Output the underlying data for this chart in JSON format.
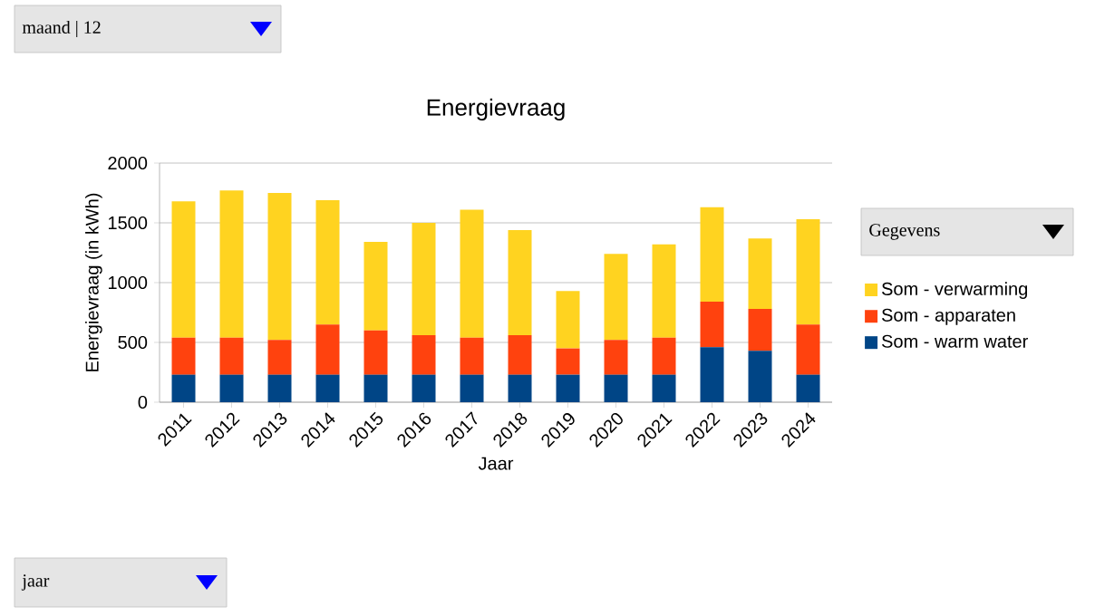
{
  "chart_data": {
    "type": "bar",
    "stacked": true,
    "title": "Energievraag",
    "xlabel": "Jaar",
    "ylabel": "Energievraag (in kWh)",
    "categories": [
      "2011",
      "2012",
      "2013",
      "2014",
      "2015",
      "2016",
      "2017",
      "2018",
      "2019",
      "2020",
      "2021",
      "2022",
      "2023",
      "2024"
    ],
    "series": [
      {
        "name": "Som - warm water",
        "color": "#004586",
        "values": [
          230,
          230,
          230,
          230,
          230,
          230,
          230,
          230,
          230,
          230,
          230,
          460,
          430,
          230
        ]
      },
      {
        "name": "Som - apparaten",
        "color": "#ff420e",
        "values": [
          310,
          310,
          290,
          420,
          370,
          330,
          310,
          330,
          220,
          290,
          310,
          380,
          350,
          420
        ]
      },
      {
        "name": "Som - verwarming",
        "color": "#ffd320",
        "values": [
          1140,
          1230,
          1230,
          1040,
          740,
          940,
          1070,
          880,
          480,
          720,
          780,
          790,
          590,
          880
        ]
      }
    ],
    "ylim": [
      0,
      2000
    ],
    "yticks": [
      0,
      500,
      1000,
      1500,
      2000
    ],
    "grid": "y",
    "legend": "right",
    "annotations": [
      "maand | 12",
      "Gegevens",
      "jaar"
    ]
  }
}
